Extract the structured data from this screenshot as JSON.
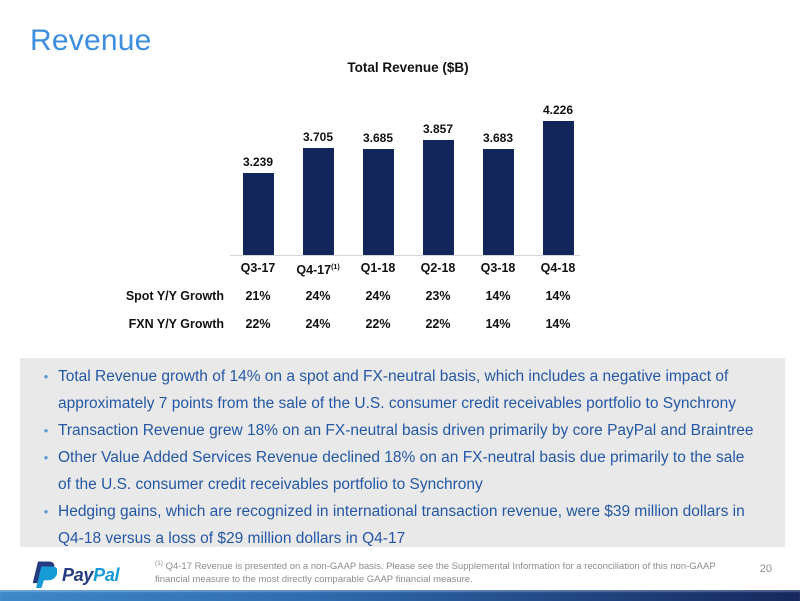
{
  "slide": {
    "title": "Revenue",
    "page_number": "20"
  },
  "chart_data": {
    "type": "bar",
    "title": "Total Revenue ($B)",
    "categories": [
      "Q3-17",
      "Q4-17",
      "Q1-18",
      "Q2-18",
      "Q3-18",
      "Q4-18"
    ],
    "category_superscripts": [
      "",
      "(1)",
      "",
      "",
      "",
      ""
    ],
    "values": [
      3.239,
      3.705,
      3.685,
      3.857,
      3.683,
      4.226
    ],
    "value_labels": [
      "3.239",
      "3.705",
      "3.685",
      "3.857",
      "3.683",
      "4.226"
    ],
    "xlabel": "",
    "ylabel": "",
    "ylim": [
      1.69,
      4.24
    ],
    "grid": false,
    "legend": "none",
    "bar_color": "#12265B",
    "growth_rows": [
      {
        "label": "Spot Y/Y Growth",
        "values": [
          "21%",
          "24%",
          "24%",
          "23%",
          "14%",
          "14%"
        ]
      },
      {
        "label": "FXN Y/Y Growth",
        "values": [
          "22%",
          "24%",
          "22%",
          "22%",
          "14%",
          "14%"
        ]
      }
    ]
  },
  "bullets": [
    "Total Revenue growth of 14% on a spot and FX-neutral basis, which includes a negative impact of approximately 7 points from the sale of the U.S. consumer credit receivables portfolio to Synchrony",
    "Transaction Revenue grew 18% on an FX-neutral basis driven primarily by core PayPal and Braintree",
    "Other Value Added Services Revenue declined 18% on an FX-neutral basis due primarily to the sale of the U.S. consumer credit receivables portfolio to Synchrony",
    "Hedging gains, which are recognized in international transaction revenue, were $39 million dollars in Q4-18 versus a loss of $29 million dollars in Q4-17"
  ],
  "footer": {
    "brand_first": "Pay",
    "brand_second": "Pal",
    "footnote_marker": "(1)",
    "footnote": "Q4-17 Revenue is presented on a non-GAAP basis.  Please see the Supplemental Information for a reconciliation of this non-GAAP financial measure to the most directly comparable GAAP financial measure."
  },
  "colors": {
    "title_blue": "#3E8EDE",
    "bar_navy": "#12265B",
    "bullet_text": "#2458A6",
    "bullet_dot": "#5B9BD5",
    "box_gray": "#E9E9E9",
    "footnote_gray": "#8C8C8C",
    "footer_bar_left": "#3E88C9",
    "footer_bar_right": "#16275D"
  }
}
